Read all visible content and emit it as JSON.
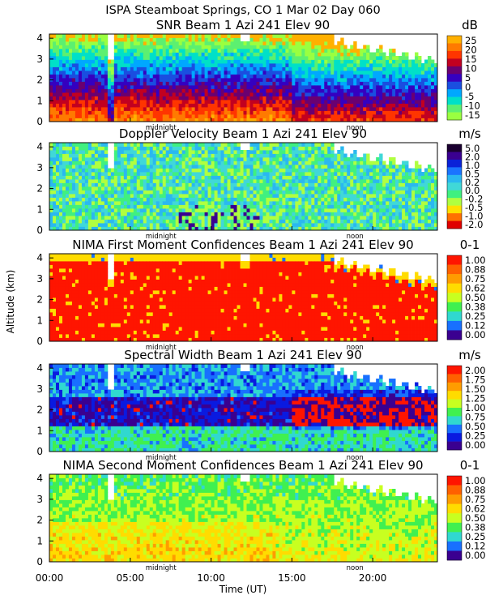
{
  "chart_data": {
    "type": "heatmap",
    "title": "ISPA Steamboat Springs, CO   1 Mar 02 Day 060",
    "xlabel": "Time (UT)",
    "ylabel": "Altitude (km)",
    "xlim": [
      0,
      24
    ],
    "x_tick_labels": [
      "00:00",
      "05:00",
      "10:00",
      "15:00",
      "20:00"
    ],
    "x_tick_values": [
      0,
      5,
      10,
      15,
      20
    ],
    "annotations": [
      {
        "text": "midnight",
        "x": 6.9
      },
      {
        "text": "noon",
        "x": 18.9
      }
    ],
    "ylim": [
      0,
      4.2
    ],
    "y_tick_labels": [
      "0",
      "1",
      "2",
      "3",
      "4"
    ],
    "panels": [
      {
        "name": "snr",
        "title": "SNR Beam 1 Azi 241 Elev 90",
        "unit": "dB",
        "colorbar_labels": [
          "25",
          "20",
          "15",
          "10",
          "5",
          "0",
          "-5",
          "-10",
          "-15"
        ],
        "colorbar_colors": [
          "#ffb000",
          "#ff7a00",
          "#ff3500",
          "#c20020",
          "#6a0070",
          "#3500c0",
          "#1a4ee0",
          "#00a8ff",
          "#00e0c8",
          "#5cf070",
          "#9aff40"
        ],
        "summary": [
          {
            "altitude_km": 0.5,
            "typical_db": 20
          },
          {
            "altitude_km": 1.5,
            "typical_db": 8
          },
          {
            "altitude_km": 2.5,
            "typical_db": 0
          },
          {
            "altitude_km": 3.5,
            "typical_db": -10
          }
        ]
      },
      {
        "name": "doppler",
        "title": "Doppler Velocity Beam 1 Azi 241 Elev 90",
        "unit": "m/s",
        "colorbar_labels": [
          "5.0",
          "2.0",
          "1.0",
          "0.5",
          "0.2",
          "0.0",
          "-0.2",
          "-0.5",
          "-1.0",
          "-2.0"
        ],
        "colorbar_colors": [
          "#1a0030",
          "#3a0090",
          "#0a22d8",
          "#1a74ff",
          "#2ab8f0",
          "#40d8d8",
          "#40f080",
          "#b0ff40",
          "#ffe000",
          "#ff7000",
          "#e00000"
        ],
        "summary": [
          {
            "altitude_km": 0.5,
            "typical_ms": 0.3
          },
          {
            "altitude_km": 2.0,
            "typical_ms": 0.1
          },
          {
            "altitude_km": 3.5,
            "typical_ms": 0.0
          }
        ]
      },
      {
        "name": "nima1",
        "title": "NIMA First Moment Confidences Beam 1 Azi 241 Elev 90",
        "unit": "0-1",
        "colorbar_labels": [
          "1.00",
          "0.88",
          "0.75",
          "0.62",
          "0.50",
          "0.38",
          "0.25",
          "0.12",
          "0.00"
        ],
        "colorbar_colors": [
          "#ff1500",
          "#ff6000",
          "#ff9c00",
          "#ffdc00",
          "#c8ff20",
          "#40f050",
          "#30d8d0",
          "#1870ff",
          "#3a0090"
        ],
        "summary": [
          {
            "altitude_km": 2.0,
            "typical_confidence": 0.95
          }
        ]
      },
      {
        "name": "width",
        "title": "Spectral Width Beam 1 Azi 241 Elev 90",
        "unit": "m/s",
        "colorbar_labels": [
          "2.00",
          "1.75",
          "1.50",
          "1.25",
          "1.00",
          "0.75",
          "0.50",
          "0.25",
          "0.00"
        ],
        "colorbar_colors": [
          "#ff1500",
          "#ff6000",
          "#ff9c00",
          "#ffdc00",
          "#c8ff20",
          "#40f050",
          "#30d8d0",
          "#1870ff",
          "#0a1ae0",
          "#3a0090"
        ],
        "summary": [
          {
            "altitude_km": 0.5,
            "typical_ms": 0.6
          },
          {
            "altitude_km": 1.8,
            "typical_ms": 0.1
          },
          {
            "altitude_km": 3.5,
            "typical_ms": 0.2
          }
        ]
      },
      {
        "name": "nima2",
        "title": "NIMA Second Moment Confidences Beam 1 Azi 241 Elev 90",
        "unit": "0-1",
        "colorbar_labels": [
          "1.00",
          "0.88",
          "0.75",
          "0.62",
          "0.50",
          "0.38",
          "0.25",
          "0.12",
          "0.00"
        ],
        "colorbar_colors": [
          "#ff1500",
          "#ff6000",
          "#ff9c00",
          "#ffdc00",
          "#c8ff20",
          "#40f050",
          "#30d8d0",
          "#1870ff",
          "#3a0090"
        ],
        "summary": [
          {
            "altitude_km": 0.8,
            "typical_confidence": 0.62
          },
          {
            "altitude_km": 2.5,
            "typical_confidence": 0.45
          },
          {
            "altitude_km": 3.8,
            "typical_confidence": 0.4
          }
        ]
      }
    ]
  }
}
